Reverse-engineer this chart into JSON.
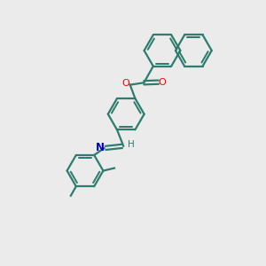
{
  "background_color": "#ebebeb",
  "bond_color": "#2d7d6e",
  "atom_colors": {
    "O": "#ff0000",
    "N": "#0000cd",
    "H": "#2d7d6e"
  },
  "figsize": [
    3.0,
    3.0
  ],
  "dpi": 100,
  "xlim": [
    0,
    10
  ],
  "ylim": [
    0,
    10
  ],
  "hex_r": 0.68,
  "lw": 1.6,
  "lw_double_inner": 0.08
}
